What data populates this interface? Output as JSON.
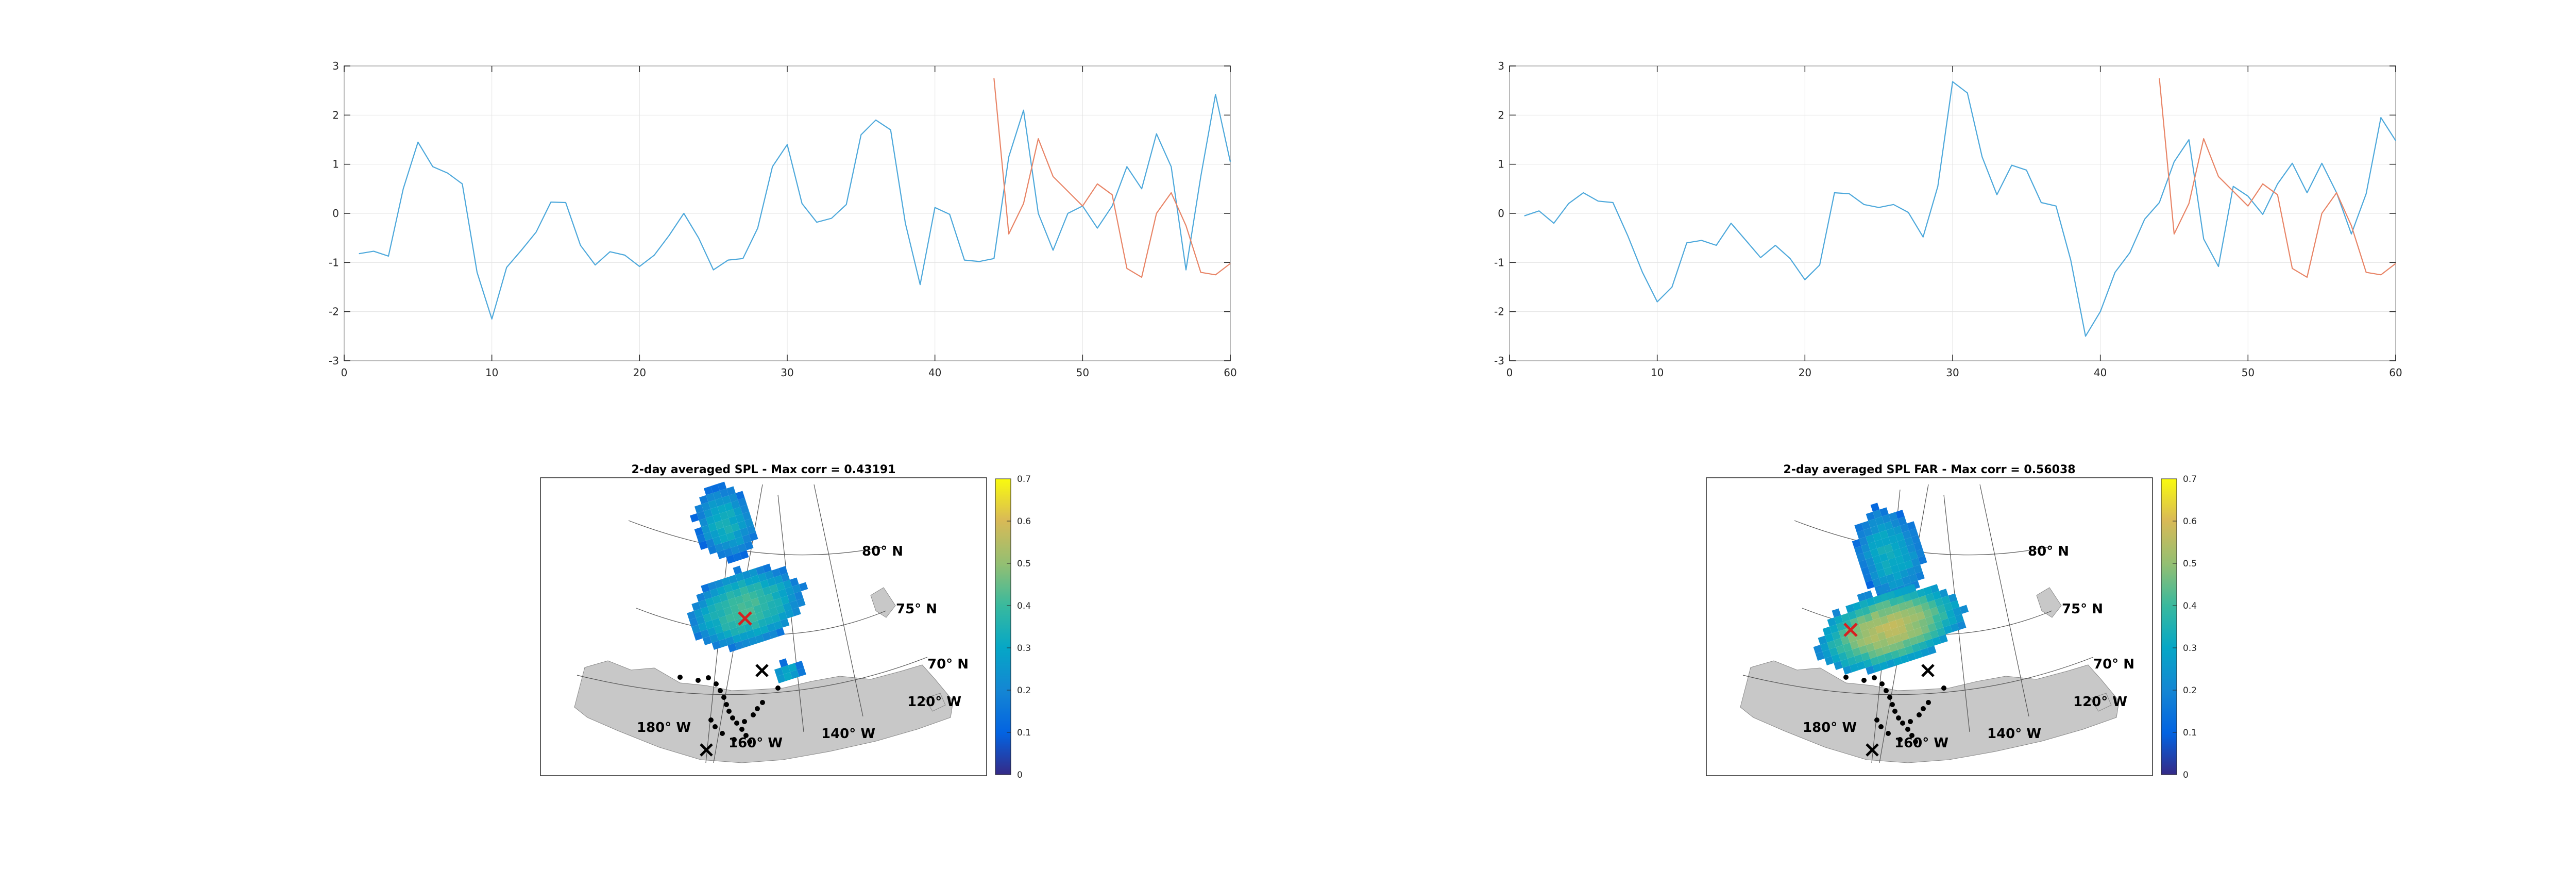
{
  "colors": {
    "series1": "#4DA8DB",
    "series2": "#E88466",
    "axes": "#262626",
    "grid": "#e3e3e3",
    "land": "#c8c8c8",
    "marker": "#d62020"
  },
  "chart_data": [
    {
      "type": "line",
      "title": "",
      "xlabel": "",
      "ylabel": "",
      "xlim": [
        0,
        60
      ],
      "ylim": [
        -3,
        3
      ],
      "grid": true,
      "xticks": [
        "0",
        "10",
        "20",
        "30",
        "40",
        "50",
        "60"
      ],
      "yticks": [
        "3",
        "2",
        "1",
        "0",
        "-1",
        "-2",
        "-3"
      ],
      "series": [
        {
          "x": [
            1,
            2,
            3,
            4,
            5,
            6,
            7,
            8,
            9,
            10,
            11,
            12,
            13,
            14,
            15,
            16,
            17,
            18,
            19,
            20,
            21,
            22,
            23,
            24,
            25,
            26,
            27,
            28,
            29,
            30,
            31,
            32,
            33,
            34,
            35,
            36,
            37,
            38,
            39,
            40,
            41,
            42,
            43,
            44,
            45,
            46,
            47,
            48,
            49,
            50,
            51,
            52,
            53,
            54,
            55,
            56,
            57,
            58,
            59,
            60
          ],
          "values": [
            -0.82,
            -0.77,
            -0.87,
            0.5,
            1.45,
            0.95,
            0.82,
            0.6,
            -1.2,
            -2.15,
            -1.1,
            -0.75,
            -0.38,
            0.23,
            0.22,
            -0.65,
            -1.05,
            -0.78,
            -0.85,
            -1.08,
            -0.85,
            -0.45,
            0.0,
            -0.5,
            -1.15,
            -0.95,
            -0.92,
            -0.3,
            0.95,
            1.4,
            0.2,
            -0.18,
            -0.1,
            0.18,
            1.6,
            1.9,
            1.7,
            -0.2,
            -1.45,
            0.12,
            -0.02,
            -0.95,
            -0.98,
            -0.92,
            1.15,
            2.1,
            0.0,
            -0.75,
            0.0,
            0.15,
            -0.3,
            0.15,
            0.95,
            0.5,
            1.62,
            0.95,
            -1.15,
            0.75,
            2.42,
            1.05
          ]
        },
        {
          "x": [
            44,
            45,
            46,
            47,
            48,
            49,
            50,
            51,
            52,
            53,
            54,
            55,
            56,
            57,
            58,
            59,
            60
          ],
          "values": [
            2.75,
            -0.42,
            0.2,
            1.52,
            0.75,
            0.45,
            0.15,
            0.6,
            0.38,
            -1.12,
            -1.3,
            0.0,
            0.42,
            -0.25,
            -1.2,
            -1.25,
            -1.02
          ]
        }
      ]
    },
    {
      "type": "line",
      "title": "",
      "xlabel": "",
      "ylabel": "",
      "xlim": [
        0,
        60
      ],
      "ylim": [
        -3,
        3
      ],
      "grid": true,
      "xticks": [
        "0",
        "10",
        "20",
        "30",
        "40",
        "50",
        "60"
      ],
      "yticks": [
        "3",
        "2",
        "1",
        "0",
        "-1",
        "-2",
        "-3"
      ],
      "series": [
        {
          "x": [
            1,
            2,
            3,
            4,
            5,
            6,
            7,
            8,
            9,
            10,
            11,
            12,
            13,
            14,
            15,
            16,
            17,
            18,
            19,
            20,
            21,
            22,
            23,
            24,
            25,
            26,
            27,
            28,
            29,
            30,
            31,
            32,
            33,
            34,
            35,
            36,
            37,
            38,
            39,
            40,
            41,
            42,
            43,
            44,
            45,
            46,
            47,
            48,
            49,
            50,
            51,
            52,
            53,
            54,
            55,
            56,
            57,
            58,
            59,
            60
          ],
          "values": [
            -0.05,
            0.05,
            -0.2,
            0.2,
            0.42,
            0.25,
            0.22,
            -0.45,
            -1.2,
            -1.8,
            -1.5,
            -0.6,
            -0.55,
            -0.65,
            -0.2,
            -0.55,
            -0.9,
            -0.65,
            -0.92,
            -1.35,
            -1.05,
            0.42,
            0.4,
            0.18,
            0.12,
            0.18,
            0.02,
            -0.48,
            0.55,
            2.68,
            2.45,
            1.15,
            0.38,
            0.98,
            0.88,
            0.22,
            0.15,
            -0.95,
            -2.5,
            -2.0,
            -1.2,
            -0.8,
            -0.12,
            0.22,
            1.05,
            1.5,
            -0.52,
            -1.08,
            0.55,
            0.35,
            -0.02,
            0.6,
            1.02,
            0.42,
            1.02,
            0.42,
            -0.42,
            0.4,
            1.95,
            1.48
          ]
        },
        {
          "x": [
            44,
            45,
            46,
            47,
            48,
            49,
            50,
            51,
            52,
            53,
            54,
            55,
            56,
            57,
            58,
            59,
            60
          ],
          "values": [
            2.75,
            -0.42,
            0.2,
            1.52,
            0.75,
            0.45,
            0.15,
            0.6,
            0.38,
            -1.12,
            -1.3,
            0.0,
            0.42,
            -0.25,
            -1.2,
            -1.25,
            -1.02
          ]
        }
      ]
    },
    {
      "type": "heatmap",
      "title": "2-day averaged SPL - Max corr = 0.43191",
      "colorbar": {
        "range": [
          0,
          0.7
        ],
        "ticks": [
          "0.7",
          "0.6",
          "0.5",
          "0.4",
          "0.3",
          "0.2",
          "0.1",
          "0"
        ]
      },
      "geo_labels": [
        "80° N",
        "75° N",
        "70° N",
        "120° W",
        "140° W",
        "160° W",
        "180° W"
      ]
    },
    {
      "type": "heatmap",
      "title": "2-day averaged SPL FAR - Max corr = 0.56038",
      "colorbar": {
        "range": [
          0,
          0.7
        ],
        "ticks": [
          "0.7",
          "0.6",
          "0.5",
          "0.4",
          "0.3",
          "0.2",
          "0.1",
          "0"
        ]
      },
      "geo_labels": [
        "80° N",
        "75° N",
        "70° N",
        "120° W",
        "140° W",
        "160° W",
        "180° W"
      ]
    }
  ]
}
